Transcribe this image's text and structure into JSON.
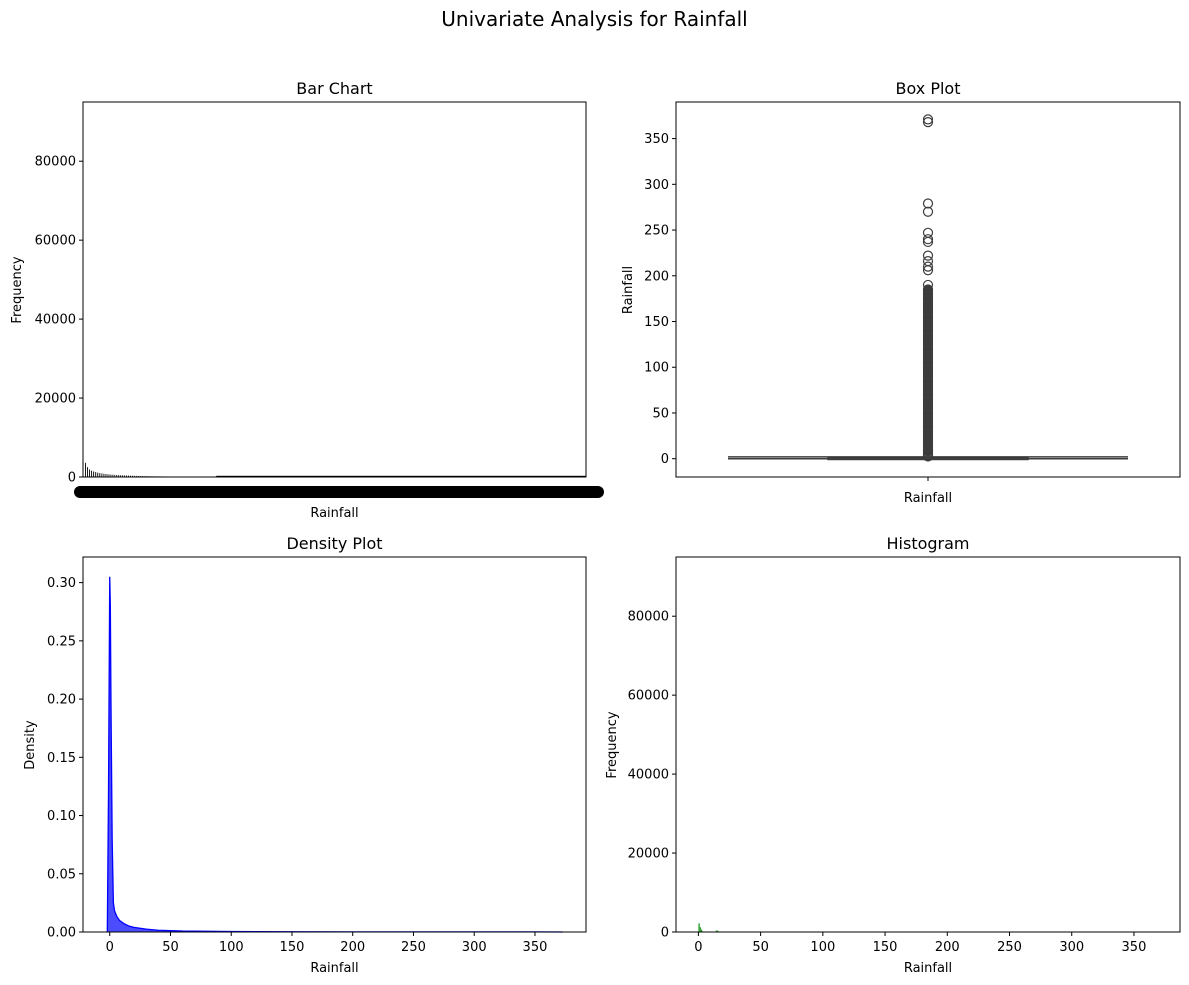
{
  "figure": {
    "suptitle": "Univariate Analysis for Rainfall",
    "colors": {
      "bar": "#000000",
      "box_line": "#3d3d3d",
      "density_line": "#0000ff",
      "density_fill": "#4c4cff",
      "hist": "#2ca02c",
      "axes": "#000000",
      "background": "#ffffff"
    }
  },
  "chart_data": [
    {
      "id": "bar-chart",
      "type": "bar",
      "title": "Bar Chart",
      "xlabel": "Rainfall",
      "ylabel": "Frequency",
      "ylim": [
        0,
        95000
      ],
      "yticks": [
        0,
        20000,
        40000,
        60000,
        80000
      ],
      "grid": false,
      "note": "x tick labels overlap into an unreadable black band",
      "values": [
        3600,
        2500,
        1900,
        1600,
        1400,
        1250,
        1100,
        1000,
        900,
        820,
        760,
        700,
        650,
        600,
        560,
        520,
        490,
        460,
        430,
        400,
        380,
        360,
        340,
        320,
        300,
        285,
        270,
        255,
        240,
        228,
        216,
        205,
        195,
        185,
        176,
        168,
        160,
        152,
        145,
        138,
        132,
        126,
        120,
        115,
        110,
        105,
        100,
        96,
        92,
        88,
        84,
        80,
        77,
        74,
        71,
        68,
        65,
        62,
        60,
        58,
        56,
        54,
        52,
        50
      ]
    },
    {
      "id": "box-plot",
      "type": "box",
      "title": "Box Plot",
      "xlabel": "Rainfall",
      "ylabel": "Rainfall",
      "ylim": [
        -20,
        390
      ],
      "yticks": [
        0,
        50,
        100,
        150,
        200,
        250,
        300,
        350
      ],
      "grid": false,
      "stats": {
        "min": 0,
        "q1": 0,
        "median": 0,
        "q3": 0.8,
        "max": 2
      },
      "outliers": [
        2.4,
        3,
        4,
        5,
        6,
        8,
        10,
        12,
        15,
        18,
        21,
        25,
        30,
        35,
        40,
        45,
        50,
        55,
        60,
        65,
        70,
        75,
        80,
        85,
        90,
        95,
        100,
        105,
        110,
        115,
        120,
        125,
        130,
        135,
        140,
        145,
        150,
        155,
        160,
        165,
        170,
        175,
        180,
        185,
        190,
        206,
        210,
        216,
        222,
        237,
        240,
        247,
        270,
        279,
        368,
        371
      ]
    },
    {
      "id": "density-plot",
      "type": "area",
      "title": "Density Plot",
      "xlabel": "Rainfall",
      "ylabel": "Density",
      "xlim": [
        -22,
        392
      ],
      "ylim": [
        0,
        0.322
      ],
      "xticks": [
        0,
        50,
        100,
        150,
        200,
        250,
        300,
        350
      ],
      "yticks": [
        0,
        0.05,
        0.1,
        0.15,
        0.2,
        0.25,
        0.3
      ],
      "yticklabels": [
        "0.00",
        "0.05",
        "0.10",
        "0.15",
        "0.20",
        "0.25",
        "0.30"
      ],
      "grid": false,
      "x": [
        -2,
        -1,
        0,
        0.5,
        1,
        2,
        3,
        4,
        6,
        8,
        12,
        16,
        20,
        30,
        40,
        60,
        100,
        150,
        200,
        250,
        300,
        350,
        373
      ],
      "y": [
        0,
        0.12,
        0.305,
        0.28,
        0.2,
        0.08,
        0.025,
        0.018,
        0.013,
        0.01,
        0.007,
        0.005,
        0.004,
        0.0025,
        0.0015,
        0.0008,
        0.0004,
        0.0002,
        0.0001,
        0.0001,
        0.0001,
        0.0001,
        0
      ]
    },
    {
      "id": "histogram",
      "type": "bar",
      "title": "Histogram",
      "xlabel": "Rainfall",
      "ylabel": "Frequency",
      "xlim": [
        -18,
        387
      ],
      "ylim": [
        0,
        95000
      ],
      "xticks": [
        0,
        50,
        100,
        150,
        200,
        250,
        300,
        350
      ],
      "yticks": [
        0,
        20000,
        40000,
        60000,
        80000
      ],
      "grid": false,
      "bins": [
        {
          "x": 0,
          "value": 2200
        },
        {
          "x": 1,
          "value": 1200
        },
        {
          "x": 2,
          "value": 600
        },
        {
          "x": 14,
          "value": 400
        },
        {
          "x": 15,
          "value": 300
        }
      ]
    }
  ]
}
